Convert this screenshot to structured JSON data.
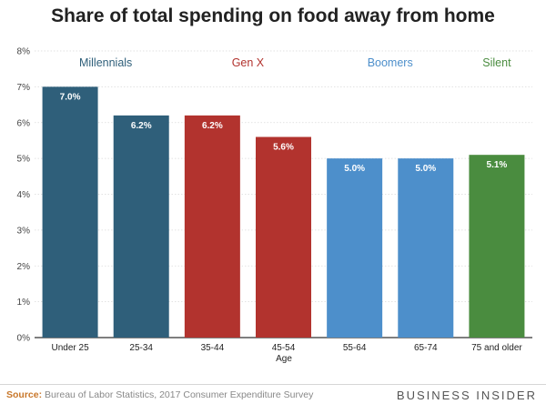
{
  "chart_data": {
    "type": "bar",
    "title": "Share of total spending on food away from home",
    "xlabel": "Age",
    "ylabel": "",
    "categories": [
      "Under 25",
      "25-34",
      "35-44",
      "45-54",
      "55-64",
      "65-74",
      "75 and older"
    ],
    "values": [
      7.0,
      6.2,
      6.2,
      5.6,
      5.0,
      5.0,
      5.1
    ],
    "value_labels": [
      "7.0%",
      "6.2%",
      "6.2%",
      "5.6%",
      "5.0%",
      "5.0%",
      "5.1%"
    ],
    "ylim": [
      0,
      8
    ],
    "yticks": [
      "0%",
      "1%",
      "2%",
      "3%",
      "4%",
      "5%",
      "6%",
      "7%",
      "8%"
    ],
    "grid": true,
    "groups": [
      {
        "name": "Millennials",
        "color": "#2f5f7a",
        "start": 0,
        "end": 1
      },
      {
        "name": "Gen X",
        "color": "#b2332e",
        "start": 2,
        "end": 3
      },
      {
        "name": "Boomers",
        "color": "#4d8fcb",
        "start": 4,
        "end": 5
      },
      {
        "name": "Silent",
        "color": "#4a8c3f",
        "start": 6,
        "end": 6
      }
    ]
  },
  "footer": {
    "source_label": "Source:",
    "source_text": "Bureau of Labor Statistics, 2017 Consumer Expenditure Survey",
    "brand": "BUSINESS INSIDER"
  }
}
